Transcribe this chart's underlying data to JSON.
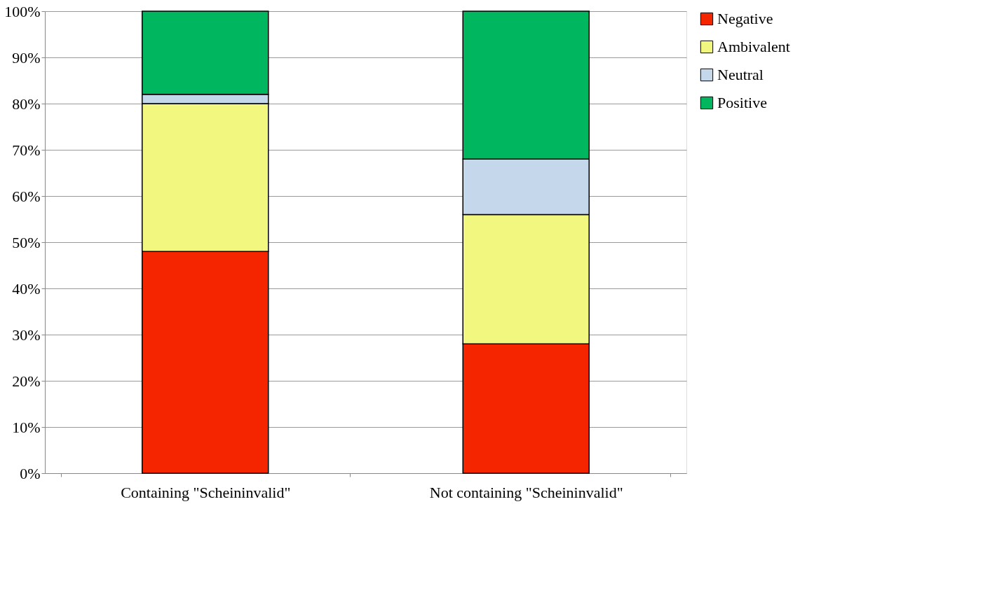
{
  "chart_data": {
    "type": "bar",
    "stacked": true,
    "categories": [
      "Containing \"Scheininvalid\"",
      "Not containing \"Scheininvalid\""
    ],
    "series": [
      {
        "name": "Negative",
        "color": "#f52500",
        "values": [
          48,
          28
        ]
      },
      {
        "name": "Ambivalent",
        "color": "#f2f780",
        "values": [
          32,
          28
        ]
      },
      {
        "name": "Neutral",
        "color": "#c5d7ea",
        "values": [
          2,
          12
        ]
      },
      {
        "name": "Positive",
        "color": "#00b75f",
        "values": [
          18,
          32
        ]
      }
    ],
    "ylim": [
      0,
      100
    ],
    "yticks": [
      {
        "value": 0,
        "label": "0%"
      },
      {
        "value": 10,
        "label": "10%"
      },
      {
        "value": 20,
        "label": "20%"
      },
      {
        "value": 30,
        "label": "30%"
      },
      {
        "value": 40,
        "label": "40%"
      },
      {
        "value": 50,
        "label": "50%"
      },
      {
        "value": 60,
        "label": "60%"
      },
      {
        "value": 70,
        "label": "70%"
      },
      {
        "value": 80,
        "label": "80%"
      },
      {
        "value": 90,
        "label": "90%"
      },
      {
        "value": 100,
        "label": "100%"
      }
    ],
    "grid": "y",
    "legend": "right"
  }
}
